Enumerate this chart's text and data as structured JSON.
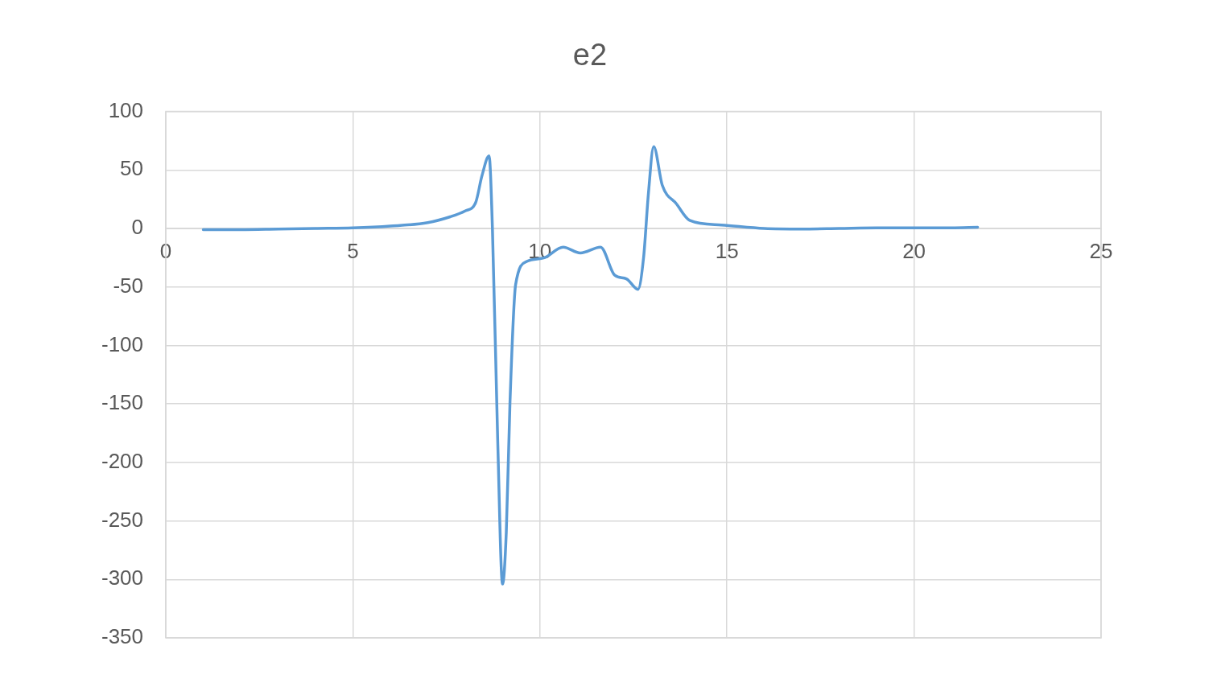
{
  "chart_data": {
    "type": "line",
    "title": "e2",
    "xlim": [
      0,
      25
    ],
    "xticks": [
      0,
      5,
      10,
      15,
      20,
      25
    ],
    "ylim": [
      -350,
      100
    ],
    "yticks": [
      -350,
      -300,
      -250,
      -200,
      -150,
      -100,
      -50,
      0,
      50,
      100
    ],
    "grid": true,
    "legend": false,
    "marker": "none",
    "line_style": "solid",
    "series": [
      {
        "color": "#5b9bd5",
        "x": [
          1,
          2,
          3,
          4,
          5,
          6,
          7,
          7.6,
          8,
          8.28,
          8.45,
          8.64,
          8.73,
          8.87,
          9.0,
          9.1,
          9.2,
          9.35,
          9.66,
          10.12,
          10.62,
          11.08,
          11.62,
          12.0,
          12.31,
          12.62,
          12.77,
          12.9,
          13.04,
          13.27,
          13.65,
          14.0,
          14.85,
          16,
          17,
          18,
          19,
          20,
          21,
          21.7
        ],
        "values": [
          -1,
          -1,
          -0.5,
          0,
          0.5,
          2,
          5,
          10,
          15,
          22,
          45,
          62,
          0,
          -180,
          -304,
          -260,
          -148,
          -48,
          -28,
          -25,
          -16,
          -21,
          -16,
          -40,
          -43,
          -52,
          -25,
          30,
          70,
          37,
          21,
          7,
          3,
          0,
          -0.5,
          0,
          0.5,
          0.5,
          0.5,
          1
        ]
      }
    ]
  }
}
